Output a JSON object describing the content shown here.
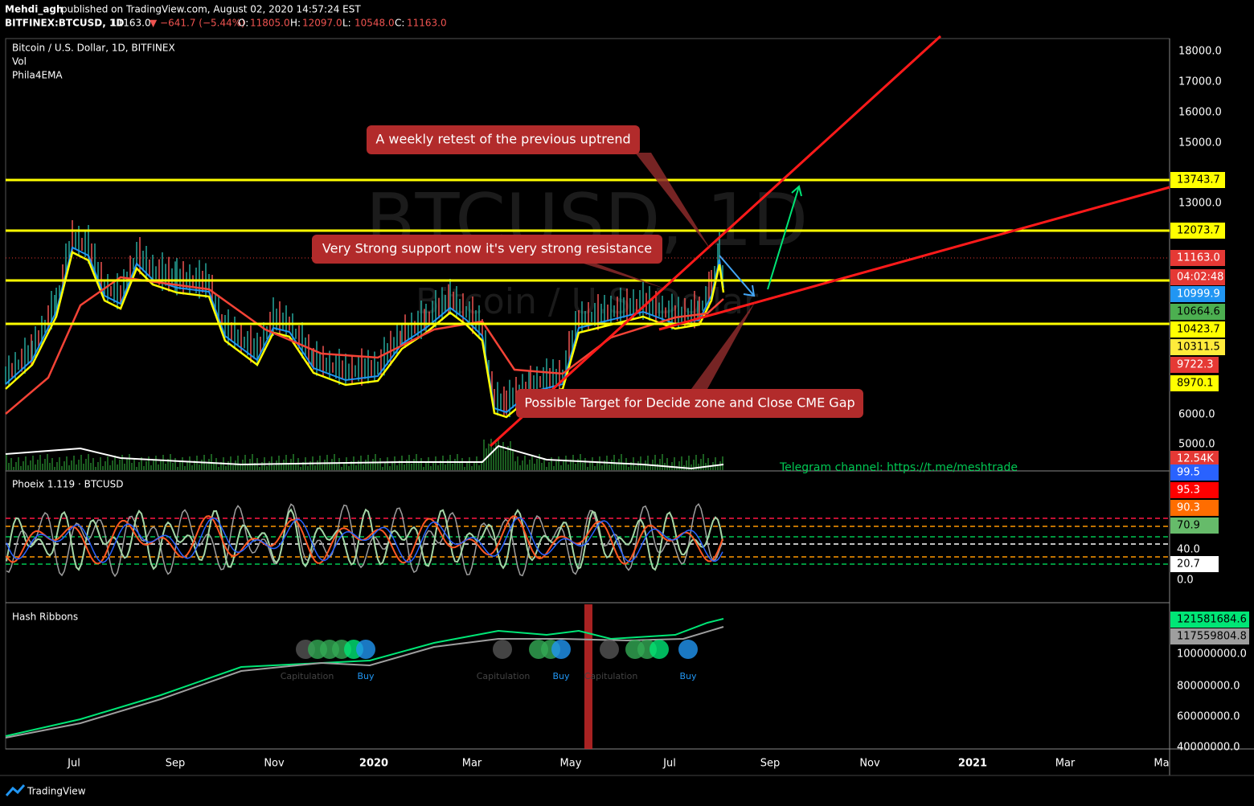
{
  "header": {
    "publisher": "Mehdi_agh",
    "published": "published on TradingView.com, August 02, 2020 14:57:24 EST",
    "symbol": "BITFINEX:BTCUSD, 1D",
    "last": "11163.0",
    "change": "▼ −641.7 (−5.44%)",
    "ohlc": [
      {
        "label": "O:",
        "value": "11805.0"
      },
      {
        "label": "H:",
        "value": "12097.0"
      },
      {
        "label": "L:",
        "value": "10548.0"
      },
      {
        "label": "C:",
        "value": "11163.0"
      }
    ]
  },
  "legend": [
    "Bitcoin / U.S. Dollar, 1D, BITFINEX",
    "Vol",
    "Phila4EMA"
  ],
  "watermark": {
    "symbol": "BTCUSD, 1D",
    "name": "Bitcoin / U.S. Dollar"
  },
  "annotations": [
    "A weekly retest of the previous uptrend",
    "Very Strong support now it's very strong resistance",
    "Possible Target for Decide zone and Close CME Gap"
  ],
  "telegram": "Telegram channel: https://t.me/meshtrade",
  "price_axis": [
    "18000.0",
    "17000.0",
    "16000.0",
    "15000.0",
    "13000.0",
    "6000.0",
    "5000.0"
  ],
  "price_badges": [
    {
      "text": "13743.7",
      "color": "#ffff00"
    },
    {
      "text": "12073.7",
      "color": "#ffff00"
    },
    {
      "text": "11163.0",
      "color": "#e53935"
    },
    {
      "text": "04:02:48",
      "color": "#e53935"
    },
    {
      "text": "10999.9",
      "color": "#2196f3"
    },
    {
      "text": "10664.6",
      "color": "#4caf50"
    },
    {
      "text": "10423.7",
      "color": "#ffff00"
    },
    {
      "text": "10311.5",
      "color": "#ffeb3b"
    },
    {
      "text": "9722.3",
      "color": "#e53935"
    },
    {
      "text": "8970.1",
      "color": "#ffff00"
    },
    {
      "text": "12.54K",
      "color": "#e53935"
    }
  ],
  "oscillator": {
    "title": "Phoeix 1.119 · BTCUSD",
    "axis": [
      {
        "text": "99.5",
        "color": "#2962ff"
      },
      {
        "text": "95.3",
        "color": "#ff0000"
      },
      {
        "text": "90.3",
        "color": "#ff6d00"
      },
      {
        "text": "70.9",
        "color": "#66bb6a"
      },
      {
        "text": "40.0",
        "color": null
      },
      {
        "text": "20.7",
        "color": "#ffffff"
      },
      {
        "text": "0.0",
        "color": null
      }
    ]
  },
  "hash_ribbons": {
    "title": "Hash Ribbons",
    "axis": [
      {
        "text": "121581684.6",
        "color": "#00e676"
      },
      {
        "text": "117559804.8",
        "color": "#9e9e9e"
      },
      {
        "text": "100000000.0",
        "color": null
      },
      {
        "text": "80000000.0",
        "color": null
      },
      {
        "text": "60000000.0",
        "color": null
      },
      {
        "text": "40000000.0",
        "color": null
      }
    ],
    "labels": [
      "Capitulation",
      "Buy",
      "Capitulation",
      "Buy",
      "Capitulation",
      "Buy"
    ]
  },
  "time_axis": [
    "Jul",
    "Sep",
    "Nov",
    "2020",
    "Mar",
    "May",
    "Jul",
    "Sep",
    "Nov",
    "2021",
    "Mar",
    "Ma"
  ],
  "footer": "TradingView"
}
